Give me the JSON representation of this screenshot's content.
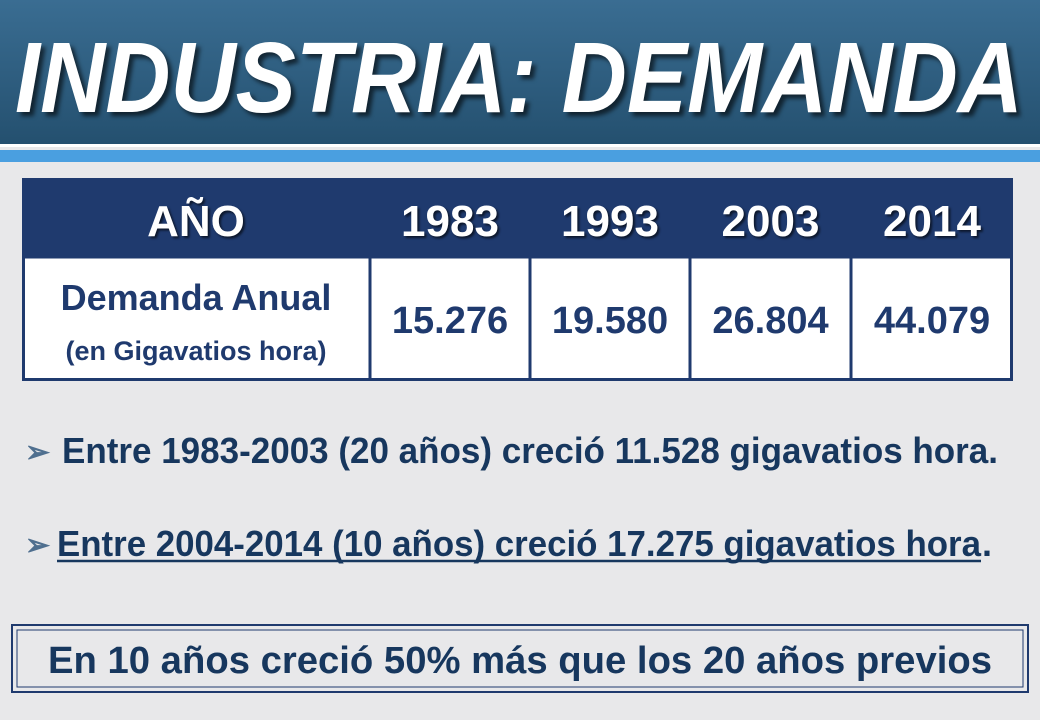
{
  "header": {
    "title": "INDUSTRIA: DEMANDA"
  },
  "table": {
    "header": [
      "AÑO",
      "1983",
      "1993",
      "2003",
      "2014"
    ],
    "rows": [
      {
        "label": "Demanda Anual",
        "sublabel": "(en Gigavatios hora)",
        "values": [
          "15.276",
          "19.580",
          "26.804",
          "44.079"
        ]
      }
    ]
  },
  "bullets": [
    {
      "text": "Entre 1983-2003 (20 años) creció 11.528 gigavatios hora."
    },
    {
      "underlined": "Entre 2004-2014 (10 años) creció 17.275 gigavatios hora",
      "rest": "."
    }
  ],
  "conclusion": "En 10 años creció 50% más que los 20 años previos"
}
